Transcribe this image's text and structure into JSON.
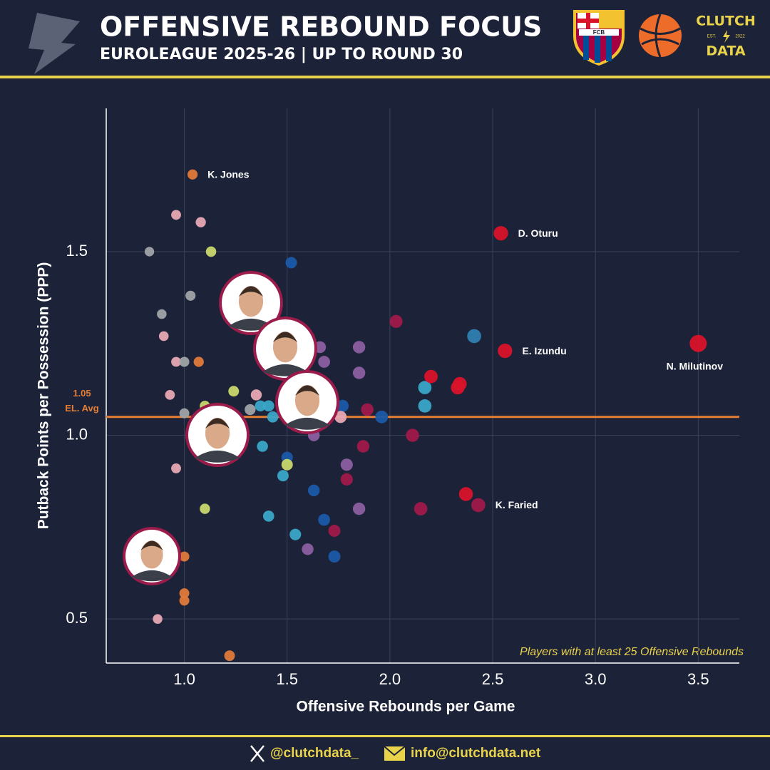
{
  "header": {
    "title": "OFFENSIVE REBOUND FOCUS",
    "subtitle": "EUROLEAGUE 2025-26 | UP TO ROUND 30",
    "brand": {
      "top": "CLUTCH",
      "est": "EST.",
      "year": "2022",
      "bottom": "DATA"
    },
    "club_badge": "FCB"
  },
  "chart_data": {
    "type": "scatter",
    "xlabel": "Offensive Rebounds per Game",
    "ylabel": "Putback Points per Possession (PPP)",
    "note": "Players with at least 25 Offensive Rebounds",
    "xlim": [
      0.62,
      3.7
    ],
    "ylim": [
      0.38,
      1.89
    ],
    "xticks": [
      {
        "value": 1,
        "label": "1.0"
      },
      1.5,
      {
        "value": 2,
        "label": "2.0"
      },
      2.5,
      {
        "value": 3,
        "label": "3.0"
      },
      3.5
    ],
    "yticks": [
      0.5,
      {
        "value": 1,
        "label": "1.0"
      },
      1.5
    ],
    "grid": true,
    "average": {
      "value": 1.05,
      "label": "1.05",
      "name": "EL. Avg",
      "color": "#e67e33"
    },
    "x": [
      1.04,
      0.96,
      1.08,
      0.83,
      1.13,
      1.52,
      1.03,
      0.89,
      0.9,
      0.96,
      1.0,
      1.07,
      0.93,
      1.0,
      1.1,
      1.24,
      1.32,
      1.35,
      1.37,
      1.41,
      1.43,
      1.38,
      1.5,
      1.5,
      1.48,
      1.41,
      1.54,
      0.96,
      1.1,
      1.0,
      1.0,
      1.0,
      0.87,
      1.22,
      1.63,
      1.66,
      1.68,
      1.85,
      1.85,
      1.77,
      1.76,
      1.89,
      1.96,
      2.03,
      2.11,
      1.87,
      1.79,
      1.79,
      1.63,
      1.85,
      1.68,
      1.73,
      1.6,
      1.73,
      2.15,
      2.17,
      2.17,
      2.2,
      2.33,
      2.34,
      2.41,
      2.37,
      2.43,
      2.54,
      2.56,
      3.5
    ],
    "values": [
      1.71,
      1.6,
      1.58,
      1.5,
      1.5,
      1.47,
      1.38,
      1.33,
      1.27,
      1.2,
      1.2,
      1.2,
      1.11,
      1.06,
      1.08,
      1.12,
      1.07,
      1.11,
      1.08,
      1.08,
      1.05,
      0.97,
      0.94,
      0.92,
      0.89,
      0.78,
      0.73,
      0.91,
      0.8,
      0.67,
      0.57,
      0.55,
      0.5,
      0.4,
      1.0,
      1.24,
      1.2,
      1.24,
      1.17,
      1.08,
      1.05,
      1.07,
      1.05,
      1.31,
      1.0,
      0.97,
      0.92,
      0.88,
      0.85,
      0.8,
      0.77,
      0.74,
      0.69,
      0.67,
      0.8,
      1.13,
      1.08,
      1.16,
      1.13,
      1.14,
      1.27,
      0.84,
      0.81,
      1.55,
      1.23,
      1.25
    ],
    "colors": [
      "#e07a3a",
      "#e8a9b3",
      "#e8a9b3",
      "#a0a4a8",
      "#c8d86a",
      "#1a5aa8",
      "#a0a4a8",
      "#a0a4a8",
      "#e8a9b3",
      "#e8a9b3",
      "#a0a4a8",
      "#e07a3a",
      "#e8a9b3",
      "#a0a4a8",
      "#c8d86a",
      "#c8d86a",
      "#a0a4a8",
      "#e8a9b3",
      "#3aa7c8",
      "#3aa7c8",
      "#3aa7c8",
      "#3aa7c8",
      "#1a5aa8",
      "#c8d86a",
      "#3aa7c8",
      "#3aa7c8",
      "#3aa7c8",
      "#e8a9b3",
      "#c8d86a",
      "#e07a3a",
      "#e07a3a",
      "#e07a3a",
      "#e8a9b3",
      "#e07a3a",
      "#8c5fa0",
      "#8c5fa0",
      "#8c5fa0",
      "#8c5fa0",
      "#8c5fa0",
      "#1a5aa8",
      "#e8a9b3",
      "#a01a4a",
      "#1a5aa8",
      "#a01a4a",
      "#a01a4a",
      "#a01a4a",
      "#8c5fa0",
      "#a01a4a",
      "#1a5aa8",
      "#8c5fa0",
      "#1a5aa8",
      "#a01a4a",
      "#8c5fa0",
      "#1a5aa8",
      "#a01a4a",
      "#3aa7c8",
      "#3aa7c8",
      "#d8132a",
      "#d8132a",
      "#d8132a",
      "#2f80b0",
      "#d8132a",
      "#a01a4a",
      "#d8132a",
      "#d8132a",
      "#d8132a"
    ],
    "point_labels": [
      "K. Jones",
      null,
      null,
      null,
      null,
      null,
      null,
      null,
      null,
      null,
      null,
      null,
      null,
      null,
      null,
      null,
      null,
      null,
      null,
      null,
      null,
      null,
      null,
      null,
      null,
      null,
      null,
      null,
      null,
      null,
      null,
      null,
      null,
      null,
      null,
      null,
      null,
      null,
      null,
      null,
      null,
      null,
      null,
      null,
      null,
      null,
      null,
      null,
      null,
      null,
      null,
      null,
      null,
      null,
      null,
      null,
      null,
      null,
      null,
      null,
      null,
      null,
      "K. Faried",
      "D. Oturu",
      "E. Izundu",
      "N. Milutinov"
    ]
  },
  "footer": {
    "twitter": "@clutchdata_",
    "email": "info@clutchdata.net"
  }
}
